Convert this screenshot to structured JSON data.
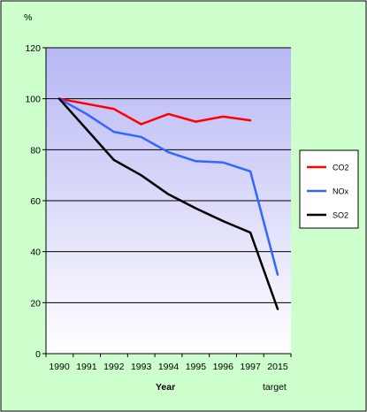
{
  "chart_data": {
    "type": "line",
    "title": "",
    "ylabel": "%",
    "xlabel": "Year",
    "x_note": "target",
    "categories": [
      "1990",
      "1991",
      "1992",
      "1993",
      "1994",
      "1995",
      "1996",
      "1997",
      "2015"
    ],
    "ylim": [
      0,
      120
    ],
    "yticks": [
      0,
      20,
      40,
      60,
      80,
      100,
      120
    ],
    "grid": true,
    "legend_position": "right",
    "colors": {
      "chart_background": "#ccffcc",
      "plot_gradient_top": "#b7b7f5",
      "plot_gradient_bottom": "#ffffff",
      "gridline": "#000000",
      "legend_background": "#ffffff",
      "border": "#000000"
    },
    "series": [
      {
        "name": "CO2",
        "color": "#ff0000",
        "values": [
          100,
          98,
          96,
          90,
          94,
          91,
          93,
          91.5,
          null
        ]
      },
      {
        "name": "NOx",
        "color": "#3366ff",
        "values": [
          100,
          94,
          87,
          85,
          79,
          75.5,
          75,
          71.5,
          31
        ]
      },
      {
        "name": "SO2",
        "color": "#000000",
        "values": [
          100,
          88,
          76,
          70,
          62.5,
          57,
          52,
          47.5,
          17.5
        ]
      }
    ]
  }
}
